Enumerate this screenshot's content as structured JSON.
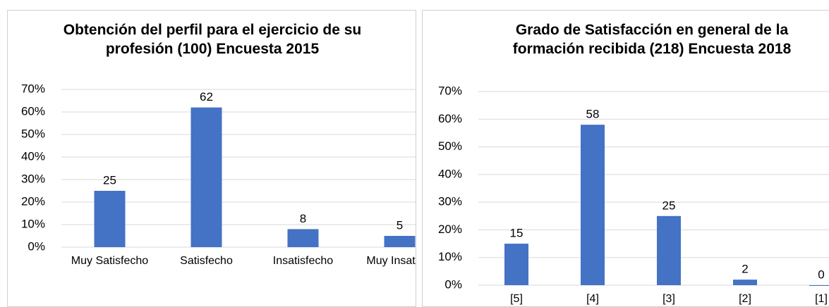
{
  "chart_data": [
    {
      "type": "bar",
      "title": "Obtención del perfil para el ejercicio de su profesión (100) Encuesta 2015",
      "categories": [
        "Muy Satisfecho",
        "Satisfecho",
        "Insatisfecho",
        "Muy Insatisfe"
      ],
      "values": [
        25,
        62,
        8,
        5
      ],
      "color": "#4472c4",
      "ylim": [
        0,
        70
      ],
      "yticks": [
        {
          "value": 0,
          "label": "0%"
        },
        {
          "value": 10,
          "label": "10%"
        },
        {
          "value": 20,
          "label": "20%"
        },
        {
          "value": 30,
          "label": "30%"
        },
        {
          "value": 40,
          "label": "40%"
        },
        {
          "value": 50,
          "label": "50%"
        },
        {
          "value": 60,
          "label": "60%"
        },
        {
          "value": 70,
          "label": "70%"
        }
      ],
      "grid": true
    },
    {
      "type": "bar",
      "title": "Grado de Satisfacción en general de la formación recibida (218) Encuesta 2018",
      "categories": [
        "[5]",
        "[4]",
        "[3]",
        "[2]",
        "[1]"
      ],
      "values": [
        15,
        58,
        25,
        2,
        0
      ],
      "color": "#4472c4",
      "ylim": [
        0,
        70
      ],
      "yticks": [
        {
          "value": 0,
          "label": "0%"
        },
        {
          "value": 10,
          "label": "10%"
        },
        {
          "value": 20,
          "label": "20%"
        },
        {
          "value": 30,
          "label": "30%"
        },
        {
          "value": 40,
          "label": "40%"
        },
        {
          "value": 50,
          "label": "50%"
        },
        {
          "value": 60,
          "label": "60%"
        },
        {
          "value": 70,
          "label": "70%"
        }
      ],
      "grid": true
    }
  ]
}
